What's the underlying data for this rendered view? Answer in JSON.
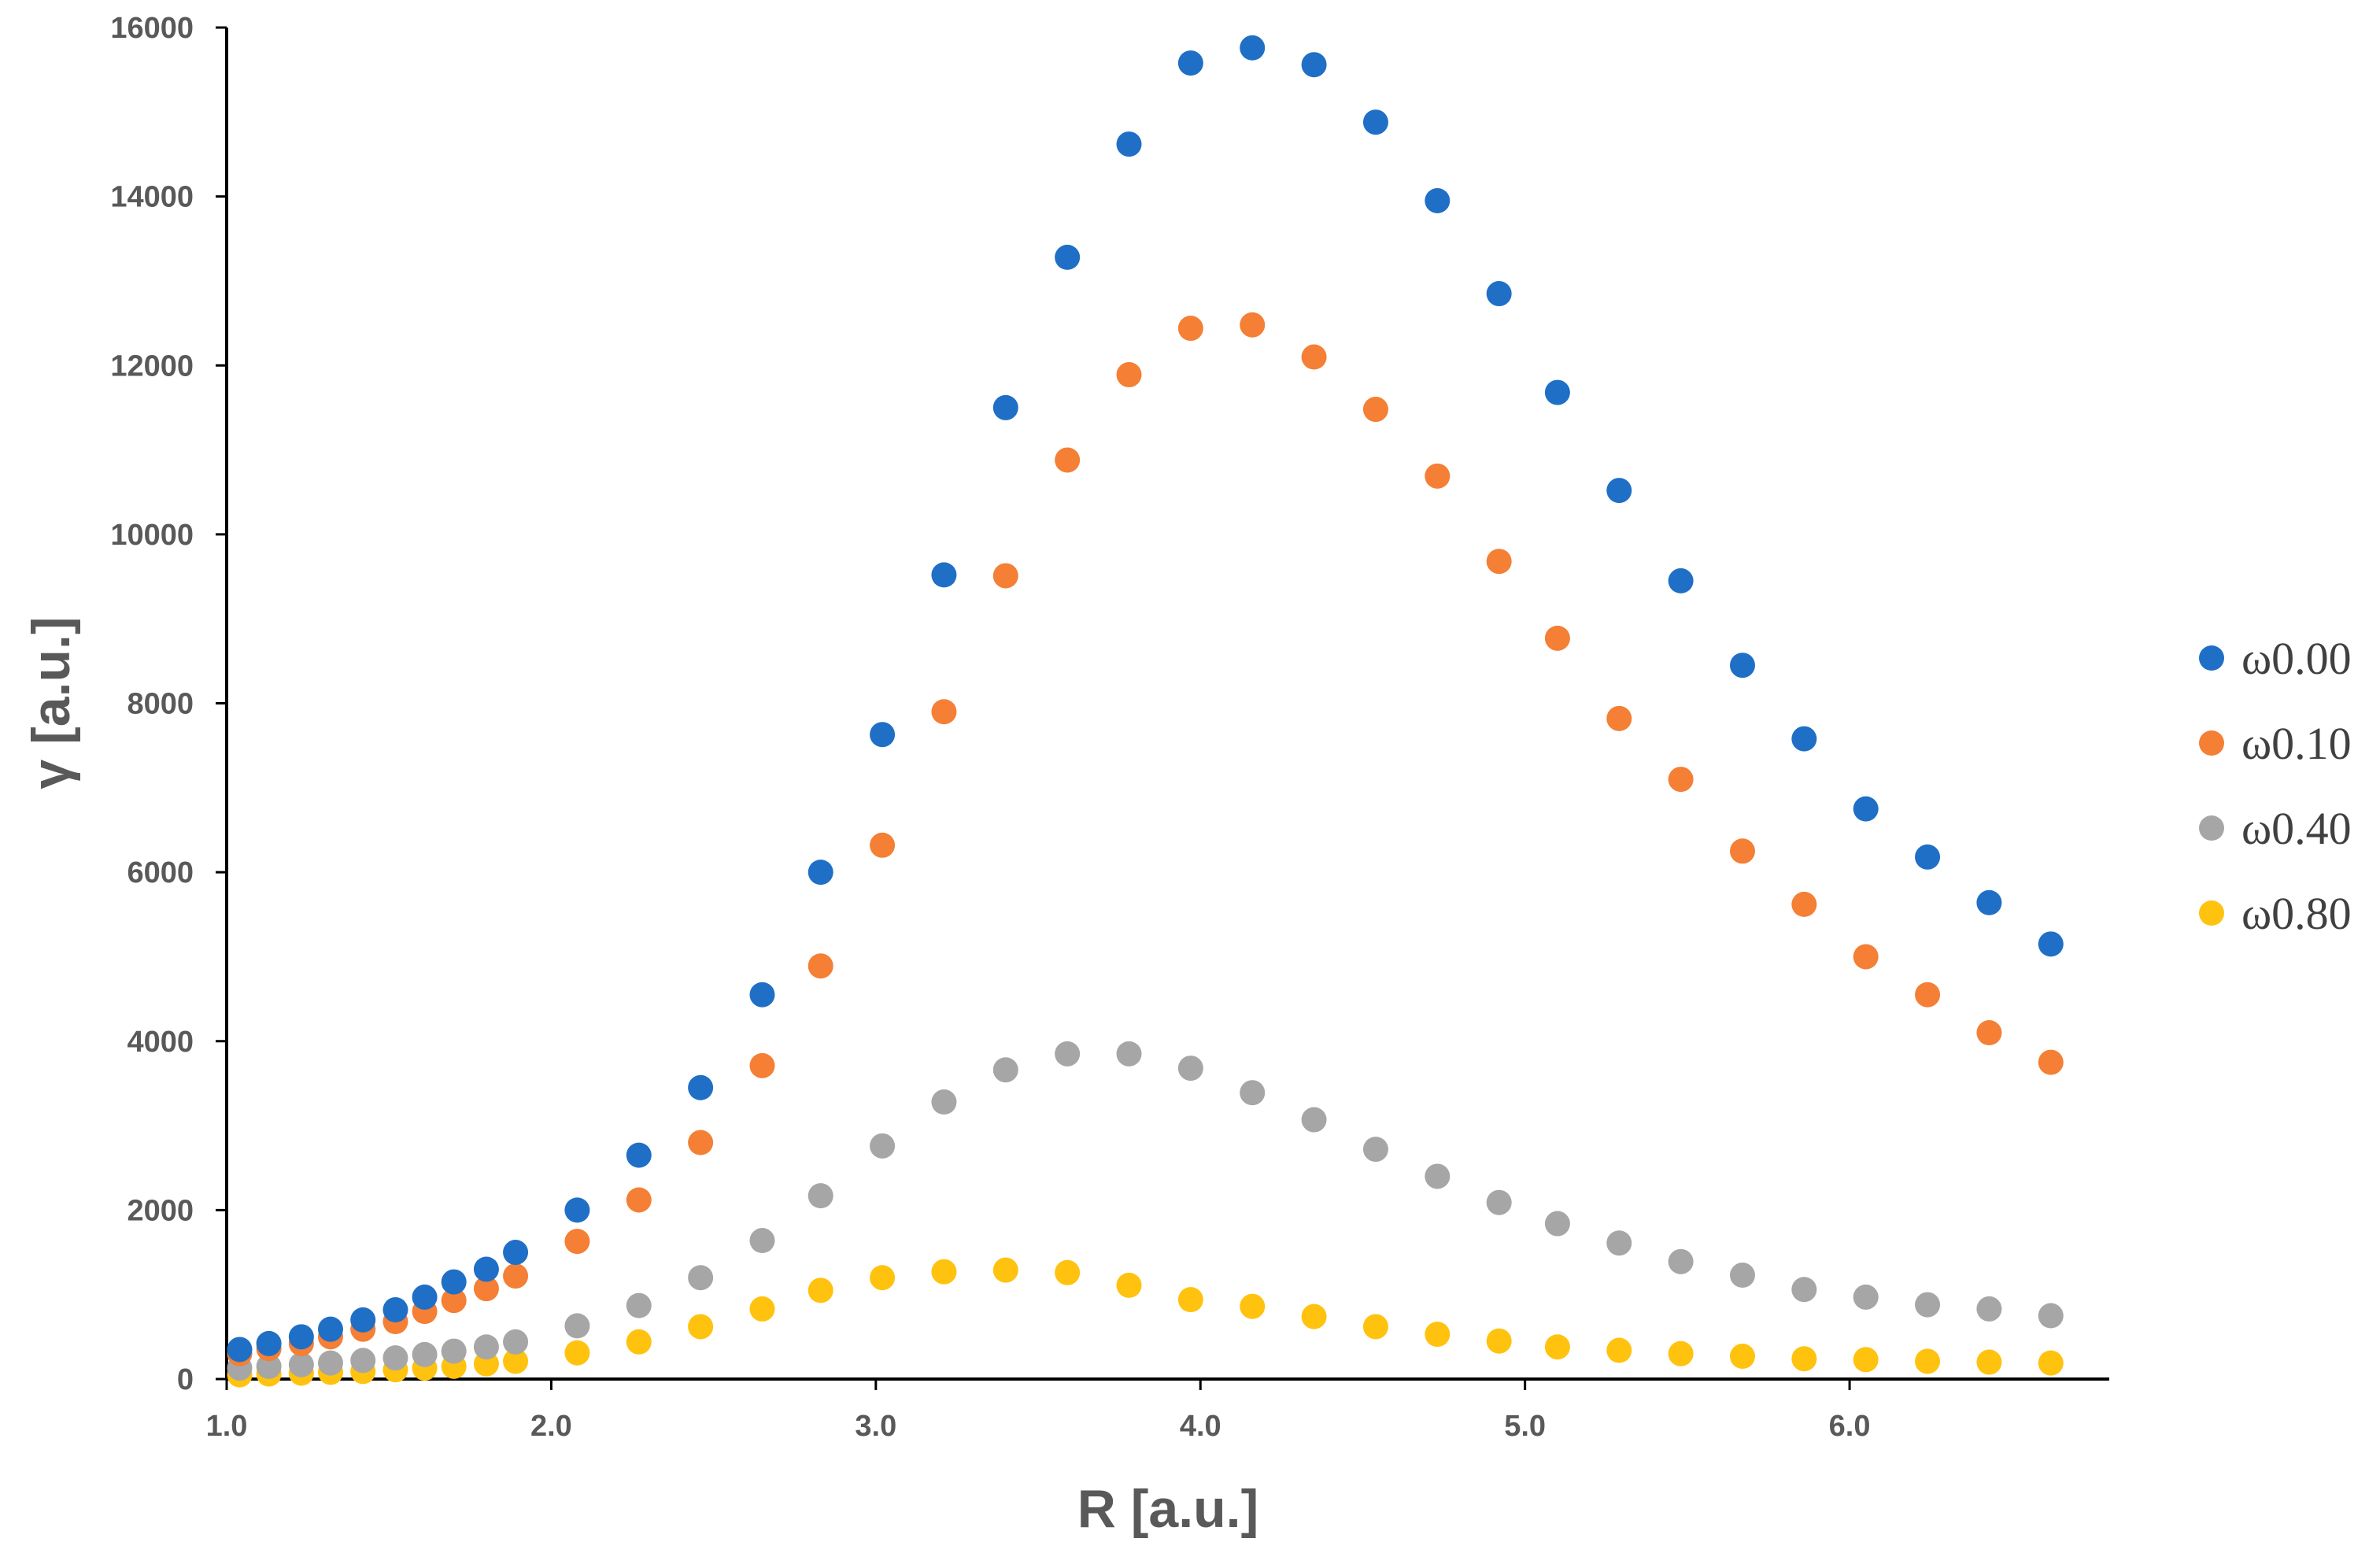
{
  "chart_data": {
    "type": "scatter",
    "title": "",
    "xlabel": "R [a.u.]",
    "ylabel": "γ [a.u.]",
    "xlim": [
      1.0,
      6.8
    ],
    "ylim": [
      0,
      16000
    ],
    "x_ticks": [
      "1.0",
      "2.0",
      "3.0",
      "4.0",
      "5.0",
      "6.0"
    ],
    "x_tick_values": [
      1.0,
      2.0,
      3.0,
      4.0,
      5.0,
      6.0
    ],
    "y_ticks": [
      "0",
      "2000",
      "4000",
      "6000",
      "8000",
      "10000",
      "12000",
      "14000",
      "16000"
    ],
    "y_tick_values": [
      0,
      2000,
      4000,
      6000,
      8000,
      10000,
      12000,
      14000,
      16000
    ],
    "grid": false,
    "legend_position": "right",
    "x": [
      1.04,
      1.13,
      1.23,
      1.32,
      1.42,
      1.52,
      1.61,
      1.7,
      1.8,
      1.89,
      2.08,
      2.27,
      2.46,
      2.65,
      2.83,
      3.02,
      3.21,
      3.4,
      3.59,
      3.78,
      3.97,
      4.16,
      4.35,
      4.54,
      4.73,
      4.92,
      5.1,
      5.29,
      5.48,
      5.67,
      5.86,
      6.05,
      6.24,
      6.43,
      6.62
    ],
    "series": [
      {
        "name": "ω0.00",
        "color": "#1f6fc6",
        "values": [
          350,
          420,
          500,
          590,
          700,
          820,
          970,
          1150,
          1300,
          1500,
          2000,
          2650,
          3450,
          4550,
          6000,
          7630,
          9520,
          11500,
          13280,
          14620,
          15580,
          15760,
          15560,
          14880,
          13950,
          12850,
          11680,
          10520,
          9450,
          8450,
          7580,
          6750,
          6180,
          5640,
          5150
        ]
      },
      {
        "name": "ω0.10",
        "color": "#f47f35",
        "values": [
          300,
          360,
          420,
          500,
          590,
          680,
          800,
          930,
          1070,
          1220,
          1630,
          2120,
          2800,
          3710,
          4890,
          6320,
          7900,
          9510,
          10880,
          11890,
          12440,
          12480,
          12100,
          11480,
          10690,
          9680,
          8770,
          7820,
          7100,
          6250,
          5620,
          5000,
          4550,
          4100,
          3750
        ]
      },
      {
        "name": "ω0.40",
        "color": "#a6a6a6",
        "values": [
          130,
          150,
          170,
          190,
          220,
          250,
          290,
          330,
          380,
          440,
          630,
          870,
          1200,
          1640,
          2170,
          2760,
          3280,
          3660,
          3850,
          3850,
          3680,
          3390,
          3070,
          2720,
          2400,
          2090,
          1840,
          1610,
          1390,
          1230,
          1060,
          970,
          880,
          830,
          750
        ]
      },
      {
        "name": "ω0.80",
        "color": "#ffc20e",
        "values": [
          50,
          60,
          70,
          80,
          90,
          110,
          130,
          150,
          180,
          210,
          310,
          440,
          620,
          830,
          1050,
          1200,
          1270,
          1290,
          1260,
          1110,
          940,
          860,
          740,
          620,
          530,
          450,
          380,
          340,
          300,
          270,
          240,
          230,
          210,
          200,
          190
        ]
      }
    ]
  }
}
